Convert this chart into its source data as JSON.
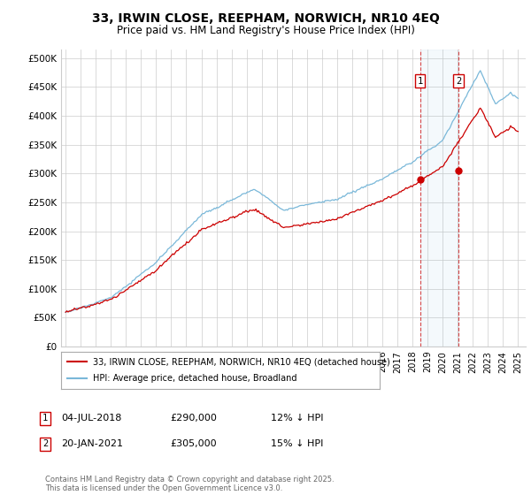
{
  "title": "33, IRWIN CLOSE, REEPHAM, NORWICH, NR10 4EQ",
  "subtitle": "Price paid vs. HM Land Registry's House Price Index (HPI)",
  "ylabel_ticks": [
    "£0",
    "£50K",
    "£100K",
    "£150K",
    "£200K",
    "£250K",
    "£300K",
    "£350K",
    "£400K",
    "£450K",
    "£500K"
  ],
  "ytick_vals": [
    0,
    50000,
    100000,
    150000,
    200000,
    250000,
    300000,
    350000,
    400000,
    450000,
    500000
  ],
  "ylim": [
    0,
    515000
  ],
  "legend_line1": "33, IRWIN CLOSE, REEPHAM, NORWICH, NR10 4EQ (detached house)",
  "legend_line2": "HPI: Average price, detached house, Broadland",
  "sale1_date": "04-JUL-2018",
  "sale1_price": 290000,
  "sale1_x": 2018.5,
  "sale1_note": "12% ↓ HPI",
  "sale2_date": "20-JAN-2021",
  "sale2_price": 305000,
  "sale2_x": 2021.05,
  "sale2_note": "15% ↓ HPI",
  "footer": "Contains HM Land Registry data © Crown copyright and database right 2025.\nThis data is licensed under the Open Government Licence v3.0.",
  "hpi_color": "#7ab8d9",
  "price_color": "#cc0000",
  "vline_color": "#cc0000",
  "background_color": "#ffffff",
  "grid_color": "#cccccc"
}
